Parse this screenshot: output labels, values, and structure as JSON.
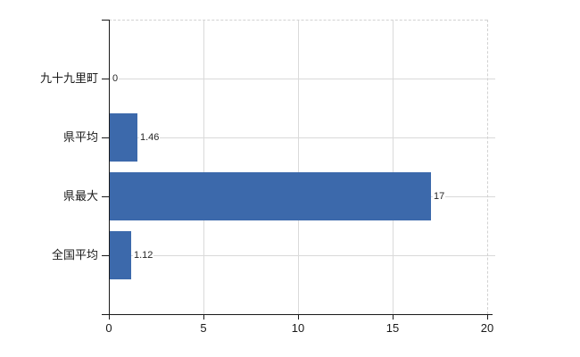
{
  "chart_data": {
    "type": "bar",
    "orientation": "horizontal",
    "title": "",
    "xlabel": "",
    "ylabel": "",
    "categories": [
      "九十九里町",
      "県平均",
      "県最大",
      "全国平均"
    ],
    "values": [
      0,
      1.46,
      17,
      1.12
    ],
    "value_labels": [
      "0",
      "1.46",
      "17",
      "1.12"
    ],
    "xlim": [
      0,
      20
    ],
    "x_ticks": [
      0,
      5,
      10,
      15,
      20
    ],
    "x_tick_labels": [
      "0",
      "5",
      "10",
      "15",
      "20"
    ],
    "legend": "none",
    "grid": "vertical gridlines at x ticks; light horizontal guide line through each category; dashed top and right plot border",
    "bar_color": "#3c69ab",
    "axis_color": "#1a1a1a",
    "gridline_color": "#d9d9d9",
    "background_color": "#ffffff"
  }
}
